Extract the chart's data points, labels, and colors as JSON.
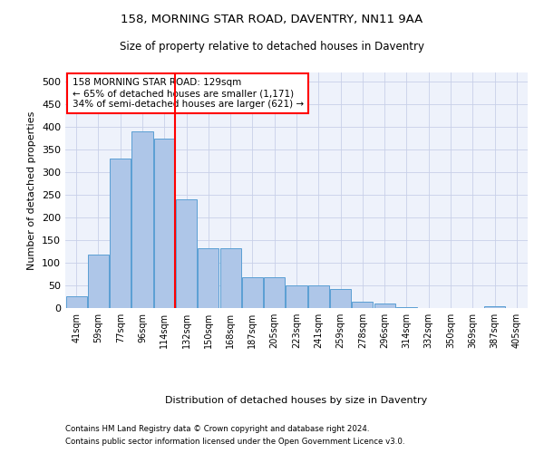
{
  "title1": "158, MORNING STAR ROAD, DAVENTRY, NN11 9AA",
  "title2": "Size of property relative to detached houses in Daventry",
  "xlabel": "Distribution of detached houses by size in Daventry",
  "ylabel": "Number of detached properties",
  "bin_labels": [
    "41sqm",
    "59sqm",
    "77sqm",
    "96sqm",
    "114sqm",
    "132sqm",
    "150sqm",
    "168sqm",
    "187sqm",
    "205sqm",
    "223sqm",
    "241sqm",
    "259sqm",
    "278sqm",
    "296sqm",
    "314sqm",
    "332sqm",
    "350sqm",
    "369sqm",
    "387sqm",
    "405sqm"
  ],
  "bar_heights": [
    27,
    118,
    330,
    390,
    375,
    240,
    132,
    132,
    68,
    68,
    50,
    50,
    43,
    15,
    10,
    3,
    0,
    0,
    0,
    5,
    0
  ],
  "bar_color": "#aec6e8",
  "bar_edge_color": "#5a9fd4",
  "vline_x": 4.5,
  "vline_color": "red",
  "annotation_text": "158 MORNING STAR ROAD: 129sqm\n← 65% of detached houses are smaller (1,171)\n34% of semi-detached houses are larger (621) →",
  "annotation_box_color": "white",
  "annotation_box_edge": "red",
  "footer1": "Contains HM Land Registry data © Crown copyright and database right 2024.",
  "footer2": "Contains public sector information licensed under the Open Government Licence v3.0.",
  "ylim": [
    0,
    520
  ],
  "yticks": [
    0,
    50,
    100,
    150,
    200,
    250,
    300,
    350,
    400,
    450,
    500
  ],
  "background_color": "#eef2fb",
  "grid_color": "#c8d0e8",
  "fig_width": 6.0,
  "fig_height": 5.0,
  "dpi": 100
}
